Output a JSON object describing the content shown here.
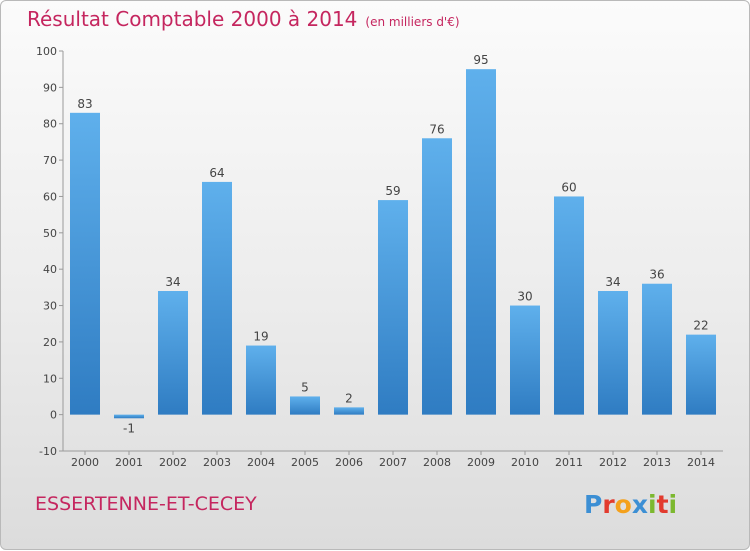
{
  "title": {
    "main": "Résultat Comptable 2000 à 2014",
    "unit": "(en milliers d'€)"
  },
  "town": "ESSERTENNE-ET-CECEY",
  "logo": {
    "letters": [
      "P",
      "r",
      "o",
      "x",
      "i",
      "t",
      "i"
    ],
    "colors": [
      "#3c8fd4",
      "#e23b2e",
      "#f4a11c",
      "#3c8fd4",
      "#7cb82f",
      "#e23b2e",
      "#7cb82f"
    ]
  },
  "chart_data": {
    "type": "bar",
    "title": "Résultat Comptable 2000 à 2014",
    "categories": [
      "2000",
      "2001",
      "2002",
      "2003",
      "2004",
      "2005",
      "2006",
      "2007",
      "2008",
      "2009",
      "2010",
      "2011",
      "2012",
      "2013",
      "2014"
    ],
    "values": [
      83,
      -1,
      34,
      64,
      19,
      5,
      2,
      59,
      76,
      95,
      30,
      60,
      34,
      36,
      22
    ],
    "ylim": [
      -10,
      100
    ],
    "yticks": [
      -10,
      0,
      10,
      20,
      30,
      40,
      50,
      60,
      70,
      80,
      90,
      100
    ],
    "grid": false,
    "bar_color": "#4a9fe0"
  }
}
